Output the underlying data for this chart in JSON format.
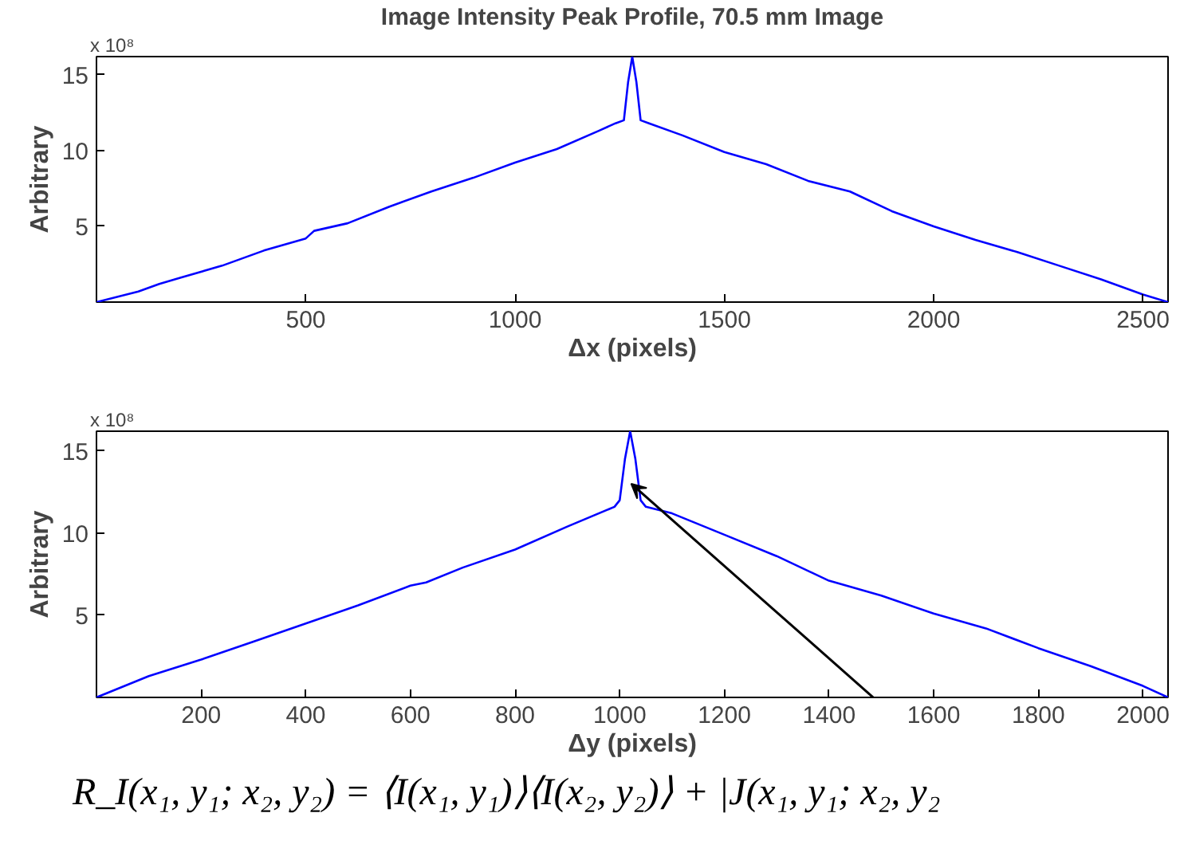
{
  "chart_data": [
    {
      "type": "line",
      "title": "Image Intensity Peak Profile, 70.5 mm Image",
      "xlabel": "Δx (pixels)",
      "ylabel": "Arbitrary",
      "annotations": [
        "x 10⁸"
      ],
      "xlim": [
        0,
        2560
      ],
      "ylim": [
        0,
        16.2
      ],
      "xticks": [
        500,
        1000,
        1500,
        2000,
        2500
      ],
      "yticks": [
        5,
        10,
        15
      ],
      "grid": false,
      "series": [
        {
          "color": "#0000ff",
          "x": [
            0,
            100,
            150,
            200,
            300,
            400,
            500,
            520,
            600,
            700,
            800,
            900,
            1000,
            1100,
            1200,
            1240,
            1260,
            1270,
            1280,
            1290,
            1300,
            1320,
            1400,
            1500,
            1600,
            1700,
            1800,
            1900,
            2000,
            2100,
            2200,
            2300,
            2400,
            2500,
            2560
          ],
          "values": [
            0,
            0.7,
            1.2,
            1.6,
            2.4,
            3.4,
            4.2,
            4.7,
            5.2,
            6.3,
            7.3,
            8.2,
            9.2,
            10.1,
            11.3,
            11.8,
            12.0,
            14.5,
            16.2,
            14.5,
            12.0,
            11.8,
            11.0,
            9.9,
            9.1,
            8.0,
            7.3,
            6.0,
            5.0,
            4.1,
            3.3,
            2.4,
            1.5,
            0.5,
            0
          ]
        }
      ]
    },
    {
      "type": "line",
      "xlabel": "Δy (pixels)",
      "ylabel": "Arbitrary",
      "annotations": [
        "x 10⁸",
        {
          "text": "R_I(x₁, y₁; x₂, y₂) = ⟨I(x₁, y₁)⟩⟨I(x₂, y₂)⟩ + |J(x₁, y₁; x₂, y₂",
          "x": 1022,
          "y": 13.0
        }
      ],
      "xlim": [
        0,
        2048
      ],
      "ylim": [
        0,
        16.2
      ],
      "xticks": [
        200,
        400,
        600,
        800,
        1000,
        1200,
        1400,
        1600,
        1800,
        2000
      ],
      "yticks": [
        5,
        10,
        15
      ],
      "grid": false,
      "series": [
        {
          "color": "#0000ff",
          "x": [
            0,
            100,
            200,
            300,
            400,
            500,
            600,
            630,
            700,
            800,
            900,
            990,
            1000,
            1010,
            1020,
            1030,
            1040,
            1050,
            1100,
            1200,
            1300,
            1400,
            1500,
            1600,
            1700,
            1800,
            1900,
            2000,
            2048
          ],
          "values": [
            0,
            1.3,
            2.3,
            3.4,
            4.5,
            5.6,
            6.8,
            7.0,
            7.9,
            9.0,
            10.4,
            11.6,
            12.0,
            14.5,
            16.2,
            14.5,
            12.0,
            11.6,
            11.2,
            9.9,
            8.6,
            7.1,
            6.2,
            5.1,
            4.2,
            3.0,
            1.9,
            0.7,
            0
          ]
        }
      ]
    }
  ]
}
